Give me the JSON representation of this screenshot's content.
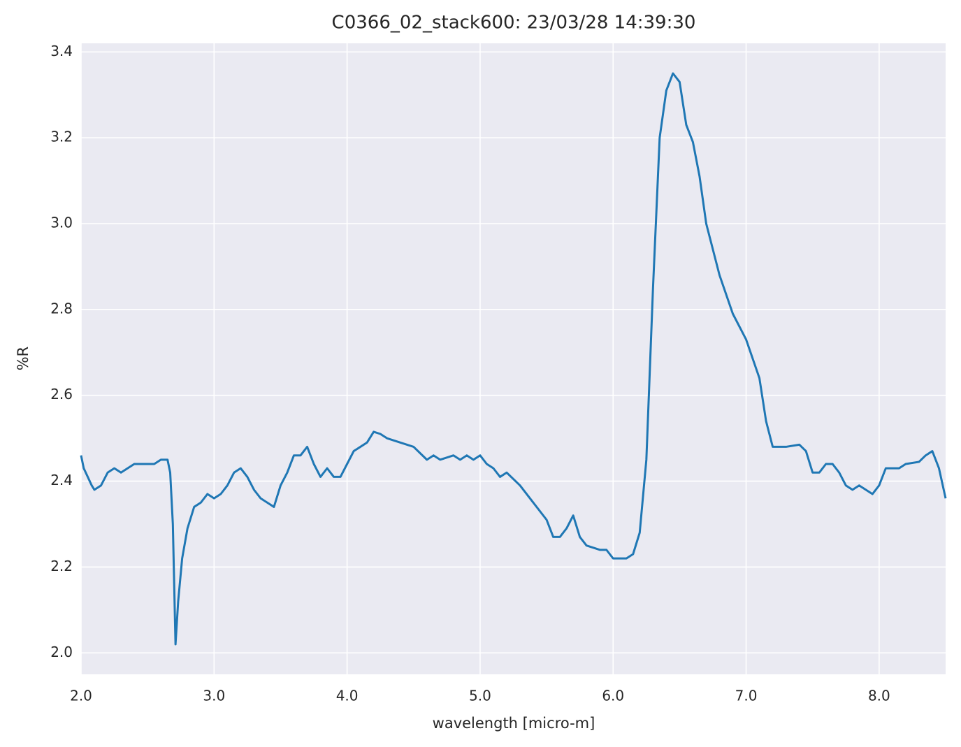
{
  "chart_data": {
    "type": "line",
    "title": "C0366_02_stack600:  23/03/28 14:39:30",
    "xlabel": "wavelength [micro-m]",
    "ylabel": "%R",
    "color": "#1f77b4",
    "grid": true,
    "xlim": [
      2.0,
      8.5
    ],
    "ylim": [
      1.95,
      3.42
    ],
    "xticks": [
      {
        "value": 2,
        "label": "2.0"
      },
      {
        "value": 3,
        "label": "3.0"
      },
      {
        "value": 4,
        "label": "4.0"
      },
      {
        "value": 5,
        "label": "5.0"
      },
      {
        "value": 6,
        "label": "6.0"
      },
      {
        "value": 7,
        "label": "7.0"
      },
      {
        "value": 8,
        "label": "8.0"
      }
    ],
    "yticks": [
      {
        "value": 2,
        "label": "2.0"
      },
      2.2,
      2.4,
      2.6,
      2.8,
      {
        "value": 3,
        "label": "3.0"
      },
      3.2,
      3.4
    ],
    "x": [
      2.0,
      2.02,
      2.05,
      2.08,
      2.1,
      2.15,
      2.2,
      2.25,
      2.3,
      2.35,
      2.4,
      2.45,
      2.5,
      2.55,
      2.6,
      2.65,
      2.67,
      2.69,
      2.71,
      2.73,
      2.76,
      2.8,
      2.85,
      2.9,
      2.95,
      3.0,
      3.05,
      3.1,
      3.15,
      3.2,
      3.25,
      3.3,
      3.35,
      3.4,
      3.45,
      3.5,
      3.55,
      3.6,
      3.65,
      3.7,
      3.75,
      3.8,
      3.85,
      3.9,
      3.95,
      4.0,
      4.05,
      4.1,
      4.15,
      4.2,
      4.25,
      4.3,
      4.4,
      4.5,
      4.6,
      4.65,
      4.7,
      4.8,
      4.85,
      4.9,
      4.95,
      5.0,
      5.05,
      5.1,
      5.15,
      5.2,
      5.3,
      5.4,
      5.5,
      5.55,
      5.6,
      5.65,
      5.7,
      5.75,
      5.8,
      5.9,
      5.95,
      6.0,
      6.05,
      6.1,
      6.15,
      6.2,
      6.25,
      6.3,
      6.35,
      6.4,
      6.45,
      6.5,
      6.55,
      6.6,
      6.65,
      6.7,
      6.8,
      6.9,
      7.0,
      7.1,
      7.15,
      7.2,
      7.3,
      7.4,
      7.45,
      7.5,
      7.55,
      7.6,
      7.65,
      7.7,
      7.75,
      7.8,
      7.85,
      7.9,
      7.95,
      8.0,
      8.05,
      8.1,
      8.15,
      8.2,
      8.3,
      8.35,
      8.4,
      8.45,
      8.5
    ],
    "values": [
      2.46,
      2.43,
      2.41,
      2.39,
      2.38,
      2.39,
      2.42,
      2.43,
      2.42,
      2.43,
      2.44,
      2.44,
      2.44,
      2.44,
      2.45,
      2.45,
      2.42,
      2.3,
      2.02,
      2.12,
      2.22,
      2.29,
      2.34,
      2.35,
      2.37,
      2.36,
      2.37,
      2.39,
      2.42,
      2.43,
      2.41,
      2.38,
      2.36,
      2.35,
      2.34,
      2.39,
      2.42,
      2.46,
      2.46,
      2.48,
      2.44,
      2.41,
      2.43,
      2.41,
      2.41,
      2.44,
      2.47,
      2.48,
      2.49,
      2.515,
      2.51,
      2.5,
      2.49,
      2.48,
      2.45,
      2.46,
      2.45,
      2.46,
      2.45,
      2.46,
      2.45,
      2.46,
      2.44,
      2.43,
      2.41,
      2.42,
      2.39,
      2.35,
      2.31,
      2.27,
      2.27,
      2.29,
      2.32,
      2.27,
      2.25,
      2.24,
      2.24,
      2.22,
      2.22,
      2.22,
      2.23,
      2.28,
      2.45,
      2.85,
      3.2,
      3.31,
      3.35,
      3.33,
      3.23,
      3.19,
      3.11,
      3.0,
      2.88,
      2.79,
      2.73,
      2.64,
      2.54,
      2.48,
      2.48,
      2.485,
      2.47,
      2.42,
      2.42,
      2.44,
      2.44,
      2.42,
      2.39,
      2.38,
      2.39,
      2.38,
      2.37,
      2.39,
      2.43,
      2.43,
      2.43,
      2.44,
      2.445,
      2.46,
      2.47,
      2.43,
      2.36
    ]
  }
}
